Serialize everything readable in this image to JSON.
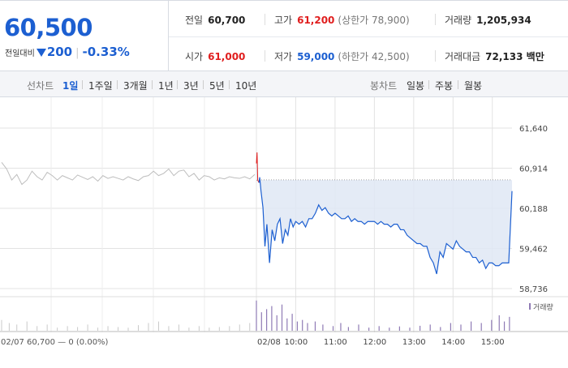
{
  "summary": {
    "price": "60,500",
    "change_label": "전일대비",
    "change_amount": "200",
    "change_percent": "-0.33%",
    "prev_close_label": "전일",
    "prev_close": "60,700",
    "high_label": "고가",
    "high": "61,200",
    "upper_limit_label": "(상한가 78,900)",
    "volume_label": "거래량",
    "volume": "1,205,934",
    "open_label": "시가",
    "open": "61,000",
    "low_label": "저가",
    "low": "59,000",
    "lower_limit_label": "(하한가 42,500)",
    "amount_label": "거래대금",
    "amount": "72,133 백만"
  },
  "tabs": {
    "line_label": "선차트",
    "line_tabs": [
      "1일",
      "1주일",
      "3개월",
      "1년",
      "3년",
      "5년",
      "10년"
    ],
    "candle_label": "봉차트",
    "candle_tabs": [
      "일봉",
      "주봉",
      "월봉"
    ]
  },
  "colors": {
    "down": "#1c5fd1",
    "up": "#e01e1e",
    "fill": "#dfe8f5",
    "prev_day": "#bdbdbd",
    "volume": "#8f7bb5"
  },
  "chart_data": {
    "type": "line",
    "y_ticks": [
      "61,640",
      "60,914",
      "60,188",
      "59,462",
      "58,736"
    ],
    "ylim": [
      58736,
      61640
    ],
    "baseline": 60700,
    "x_ticks": [
      "02/08",
      "10:00",
      "11:00",
      "12:00",
      "13:00",
      "14:00",
      "15:00"
    ],
    "volume_legend": "거래량",
    "footer_text": "02/07  60,700 — 0 (0.00%)",
    "prev_day_series": [
      [
        0,
        61020
      ],
      [
        0.02,
        60900
      ],
      [
        0.04,
        60700
      ],
      [
        0.06,
        60800
      ],
      [
        0.08,
        60620
      ],
      [
        0.1,
        60700
      ],
      [
        0.12,
        60860
      ],
      [
        0.14,
        60760
      ],
      [
        0.16,
        60700
      ],
      [
        0.18,
        60840
      ],
      [
        0.2,
        60780
      ],
      [
        0.22,
        60700
      ],
      [
        0.24,
        60780
      ],
      [
        0.26,
        60740
      ],
      [
        0.28,
        60700
      ],
      [
        0.3,
        60790
      ],
      [
        0.32,
        60750
      ],
      [
        0.34,
        60710
      ],
      [
        0.36,
        60760
      ],
      [
        0.38,
        60680
      ],
      [
        0.4,
        60780
      ],
      [
        0.42,
        60730
      ],
      [
        0.44,
        60760
      ],
      [
        0.46,
        60730
      ],
      [
        0.48,
        60700
      ],
      [
        0.5,
        60760
      ],
      [
        0.52,
        60720
      ],
      [
        0.54,
        60690
      ],
      [
        0.56,
        60760
      ],
      [
        0.58,
        60780
      ],
      [
        0.6,
        60860
      ],
      [
        0.62,
        60780
      ],
      [
        0.64,
        60820
      ],
      [
        0.66,
        60900
      ],
      [
        0.68,
        60780
      ],
      [
        0.7,
        60860
      ],
      [
        0.72,
        60880
      ],
      [
        0.74,
        60760
      ],
      [
        0.76,
        60820
      ],
      [
        0.78,
        60700
      ],
      [
        0.8,
        60780
      ],
      [
        0.82,
        60760
      ],
      [
        0.84,
        60700
      ],
      [
        0.86,
        60740
      ],
      [
        0.88,
        60720
      ],
      [
        0.9,
        60760
      ],
      [
        0.92,
        60740
      ],
      [
        0.94,
        60730
      ],
      [
        0.96,
        60760
      ],
      [
        0.98,
        60720
      ],
      [
        1,
        60800
      ]
    ],
    "today_series": [
      [
        "09:00",
        61000
      ],
      [
        "09:01",
        61200
      ],
      [
        "09:02",
        60700
      ],
      [
        "09:04",
        60650
      ],
      [
        "09:05",
        60750
      ],
      [
        "09:07",
        60500
      ],
      [
        "09:10",
        60200
      ],
      [
        "09:13",
        59500
      ],
      [
        "09:16",
        59900
      ],
      [
        "09:20",
        59200
      ],
      [
        "09:24",
        59800
      ],
      [
        "09:28",
        59600
      ],
      [
        "09:32",
        59900
      ],
      [
        "09:36",
        60000
      ],
      [
        "09:40",
        59550
      ],
      [
        "09:44",
        59800
      ],
      [
        "09:48",
        59700
      ],
      [
        "09:52",
        60000
      ],
      [
        "09:56",
        59850
      ],
      [
        "10:00",
        59950
      ],
      [
        "10:05",
        59900
      ],
      [
        "10:10",
        59950
      ],
      [
        "10:15",
        59850
      ],
      [
        "10:20",
        60000
      ],
      [
        "10:25",
        60000
      ],
      [
        "10:30",
        60100
      ],
      [
        "10:35",
        60250
      ],
      [
        "10:40",
        60150
      ],
      [
        "10:45",
        60200
      ],
      [
        "10:50",
        60100
      ],
      [
        "10:55",
        60050
      ],
      [
        "11:00",
        60100
      ],
      [
        "11:05",
        60050
      ],
      [
        "11:10",
        60000
      ],
      [
        "11:15",
        60000
      ],
      [
        "11:20",
        60050
      ],
      [
        "11:25",
        59950
      ],
      [
        "11:30",
        60000
      ],
      [
        "11:35",
        59950
      ],
      [
        "11:40",
        59950
      ],
      [
        "11:45",
        59900
      ],
      [
        "11:50",
        59950
      ],
      [
        "11:55",
        59950
      ],
      [
        "12:00",
        59950
      ],
      [
        "12:05",
        59900
      ],
      [
        "12:10",
        59950
      ],
      [
        "12:15",
        59900
      ],
      [
        "12:20",
        59900
      ],
      [
        "12:25",
        59850
      ],
      [
        "12:30",
        59900
      ],
      [
        "12:35",
        59900
      ],
      [
        "12:40",
        59800
      ],
      [
        "12:45",
        59800
      ],
      [
        "12:50",
        59700
      ],
      [
        "12:55",
        59650
      ],
      [
        "13:00",
        59600
      ],
      [
        "13:05",
        59550
      ],
      [
        "13:10",
        59550
      ],
      [
        "13:15",
        59500
      ],
      [
        "13:20",
        59500
      ],
      [
        "13:25",
        59300
      ],
      [
        "13:30",
        59200
      ],
      [
        "13:35",
        59000
      ],
      [
        "13:40",
        59400
      ],
      [
        "13:45",
        59300
      ],
      [
        "13:50",
        59550
      ],
      [
        "13:55",
        59500
      ],
      [
        "14:00",
        59450
      ],
      [
        "14:05",
        59600
      ],
      [
        "14:10",
        59500
      ],
      [
        "14:15",
        59450
      ],
      [
        "14:20",
        59400
      ],
      [
        "14:25",
        59400
      ],
      [
        "14:30",
        59300
      ],
      [
        "14:35",
        59300
      ],
      [
        "14:40",
        59200
      ],
      [
        "14:45",
        59250
      ],
      [
        "14:50",
        59100
      ],
      [
        "14:55",
        59200
      ],
      [
        "15:00",
        59200
      ],
      [
        "15:05",
        59150
      ],
      [
        "15:10",
        59150
      ],
      [
        "15:15",
        59200
      ],
      [
        "15:20",
        59200
      ],
      [
        "15:25",
        59200
      ],
      [
        "15:30",
        60500
      ]
    ],
    "volume_today": [
      [
        0,
        0.98
      ],
      [
        0.02,
        0.6
      ],
      [
        0.04,
        0.7
      ],
      [
        0.06,
        0.8
      ],
      [
        0.08,
        0.5
      ],
      [
        0.1,
        0.85
      ],
      [
        0.12,
        0.4
      ],
      [
        0.14,
        0.55
      ],
      [
        0.16,
        0.3
      ],
      [
        0.18,
        0.35
      ],
      [
        0.2,
        0.25
      ],
      [
        0.23,
        0.3
      ],
      [
        0.26,
        0.2
      ],
      [
        0.3,
        0.15
      ],
      [
        0.33,
        0.25
      ],
      [
        0.36,
        0.12
      ],
      [
        0.4,
        0.2
      ],
      [
        0.44,
        0.1
      ],
      [
        0.48,
        0.15
      ],
      [
        0.52,
        0.1
      ],
      [
        0.56,
        0.14
      ],
      [
        0.6,
        0.1
      ],
      [
        0.64,
        0.16
      ],
      [
        0.68,
        0.2
      ],
      [
        0.72,
        0.12
      ],
      [
        0.76,
        0.25
      ],
      [
        0.8,
        0.2
      ],
      [
        0.84,
        0.3
      ],
      [
        0.88,
        0.25
      ],
      [
        0.92,
        0.35
      ],
      [
        0.95,
        0.5
      ],
      [
        0.97,
        0.3
      ],
      [
        0.99,
        0.45
      ]
    ],
    "volume_prev": [
      [
        0,
        0.35
      ],
      [
        0.03,
        0.25
      ],
      [
        0.06,
        0.2
      ],
      [
        0.1,
        0.3
      ],
      [
        0.14,
        0.15
      ],
      [
        0.18,
        0.2
      ],
      [
        0.22,
        0.1
      ],
      [
        0.26,
        0.15
      ],
      [
        0.3,
        0.12
      ],
      [
        0.34,
        0.2
      ],
      [
        0.38,
        0.1
      ],
      [
        0.42,
        0.15
      ],
      [
        0.46,
        0.12
      ],
      [
        0.5,
        0.1
      ],
      [
        0.54,
        0.18
      ],
      [
        0.58,
        0.25
      ],
      [
        0.62,
        0.3
      ],
      [
        0.66,
        0.15
      ],
      [
        0.7,
        0.2
      ],
      [
        0.74,
        0.1
      ],
      [
        0.78,
        0.15
      ],
      [
        0.82,
        0.1
      ],
      [
        0.86,
        0.12
      ],
      [
        0.9,
        0.15
      ],
      [
        0.94,
        0.2
      ],
      [
        0.98,
        0.25
      ]
    ]
  }
}
